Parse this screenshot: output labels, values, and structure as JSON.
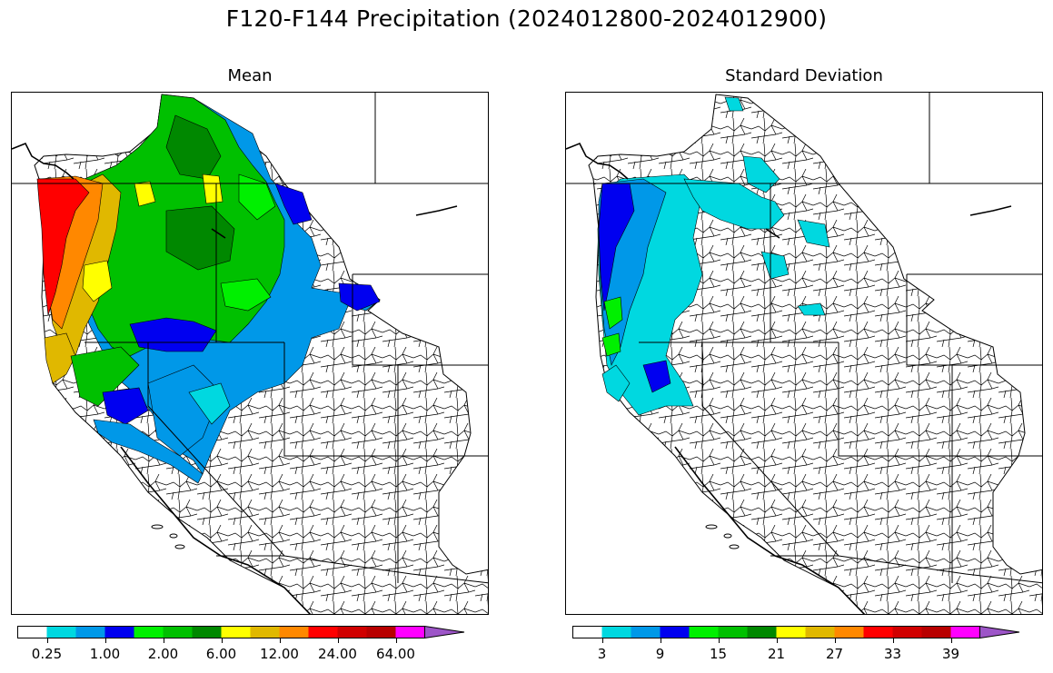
{
  "figure": {
    "title": "F120-F144 Precipitation (2024012800-2024012900)"
  },
  "panels": [
    {
      "title": "Mean",
      "colorbar": {
        "colors": [
          "#ffffff",
          "#00d8e0",
          "#0098e8",
          "#0000f0",
          "#00f000",
          "#00c000",
          "#008800",
          "#ffff00",
          "#e0b800",
          "#ff8800",
          "#ff0000",
          "#d00000",
          "#b80000",
          "#ff00ff",
          "#9d55c8"
        ],
        "tick_labels": [
          "0.25",
          "1.00",
          "2.00",
          "6.00",
          "12.00",
          "24.00",
          "64.00"
        ],
        "extend": "max"
      }
    },
    {
      "title": "Standard Deviation",
      "colorbar": {
        "colors": [
          "#ffffff",
          "#00d8e0",
          "#0098e8",
          "#0000f0",
          "#00f000",
          "#00c000",
          "#008800",
          "#ffff00",
          "#e0b800",
          "#ff8800",
          "#ff0000",
          "#d00000",
          "#b80000",
          "#ff00ff",
          "#9d55c8"
        ],
        "tick_labels": [
          "3",
          "9",
          "15",
          "21",
          "27",
          "33",
          "39"
        ],
        "extend": "max"
      }
    }
  ]
}
